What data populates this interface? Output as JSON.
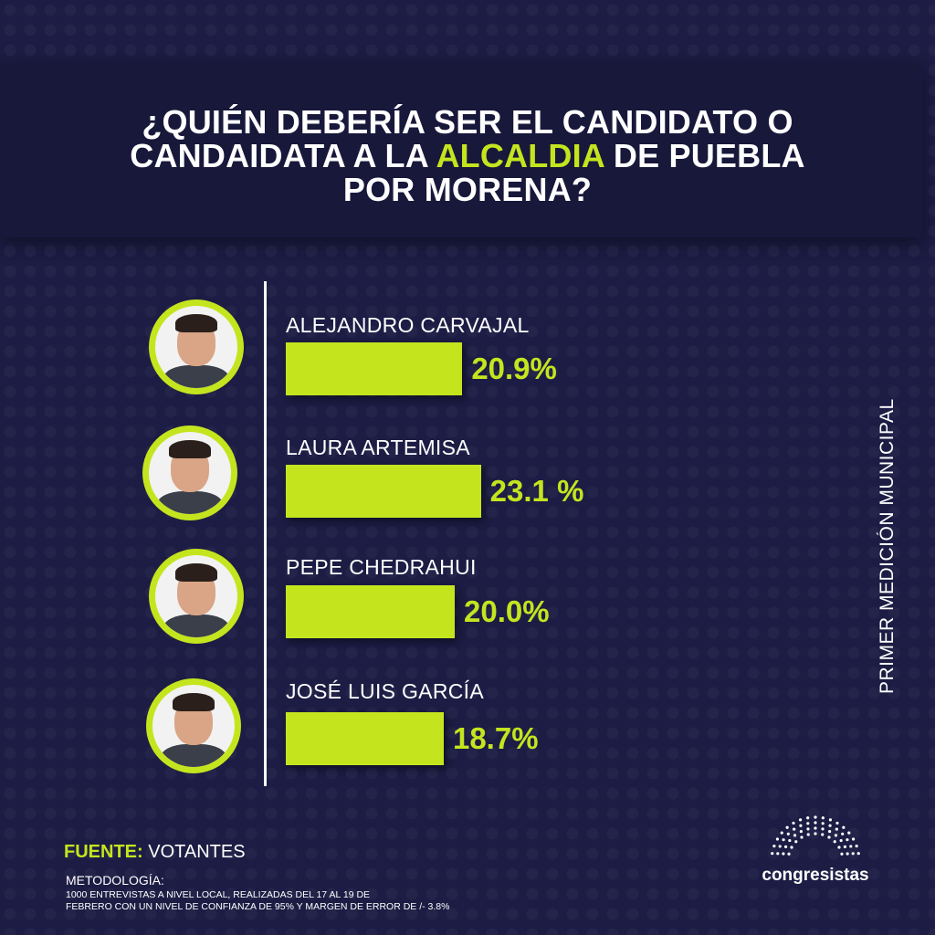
{
  "header": {
    "title_part1": "¿QUIÉN DEBERÍA SER EL CANDIDATO O",
    "title_part2a": "CANDAIDATA A LA ",
    "title_highlight": "ALCALDIA",
    "title_part2b": " DE PUEBLA",
    "title_part3": "POR MORENA?"
  },
  "chart_data": {
    "type": "bar",
    "orientation": "horizontal",
    "categories": [
      "ALEJANDRO CARVAJAL",
      "LAURA ARTEMISA",
      "PEPE CHEDRAHUI",
      "JOSÉ LUIS GARCÍA"
    ],
    "values": [
      20.9,
      23.1,
      20.0,
      18.7
    ],
    "value_labels": [
      "20.9%",
      "23.1 %",
      "20.0%",
      "18.7%"
    ],
    "unit": "%",
    "bar_color": "#c4e51e"
  },
  "side_label": "PRIMER MEDICIÓN MUNICIPAL",
  "footer": {
    "source_label": "FUENTE:",
    "source_value": "VOTANTES",
    "methodology_label": "METODOLOGÍA:",
    "methodology_line1": "1000 ENTREVISTAS A NIVEL LOCAL, REALIZADAS DEL 17 AL 19 DE",
    "methodology_line2": "FEBRERO CON UN NIVEL DE CONFIANZA DE 95% Y MARGEN DE ERROR DE /- 3.8%"
  },
  "logo": {
    "text": "congresistas"
  }
}
